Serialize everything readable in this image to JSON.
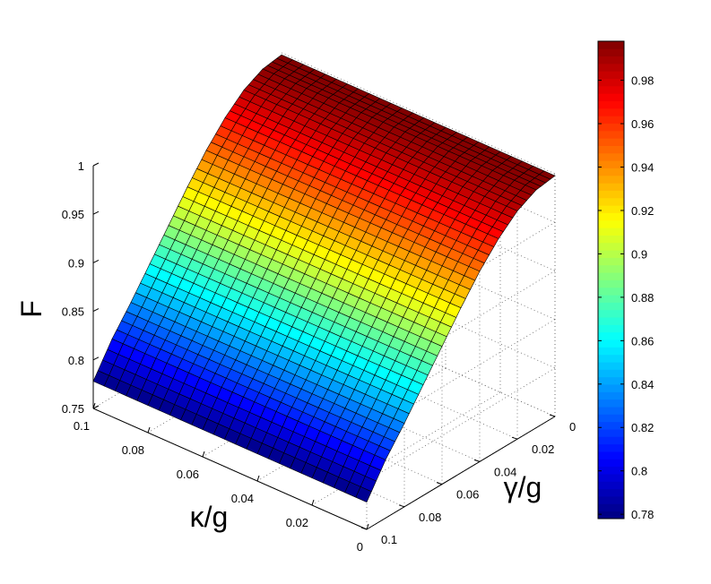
{
  "chart_data": {
    "type": "surface",
    "zlabel": "F",
    "xlabel": "κ/g",
    "ylabel": "γ/g",
    "x": {
      "range": [
        0,
        0.1
      ],
      "ticks": [
        0.1,
        0.08,
        0.06,
        0.04,
        0.02,
        0
      ],
      "tick_labels": [
        "0.1",
        "0.08",
        "0.06",
        "0.04",
        "0.02",
        "0"
      ]
    },
    "y": {
      "range": [
        0,
        0.1
      ],
      "ticks": [
        0,
        0.02,
        0.04,
        0.06,
        0.08,
        0.1
      ],
      "tick_labels": [
        "0",
        "0.02",
        "0.04",
        "0.06",
        "0.08",
        "0.1"
      ]
    },
    "z": {
      "range": [
        0.75,
        1
      ],
      "ticks": [
        0.75,
        0.8,
        0.85,
        0.9,
        0.95,
        1
      ],
      "tick_labels": [
        "0.75",
        "0.8",
        "0.85",
        "0.9",
        "0.95",
        "1"
      ]
    },
    "surface_profile": {
      "varies_along": "γ/g",
      "gamma": [
        0,
        0.01,
        0.02,
        0.03,
        0.04,
        0.05,
        0.06,
        0.07,
        0.08,
        0.09,
        0.1
      ],
      "F": [
        0.998,
        0.995,
        0.985,
        0.968,
        0.946,
        0.92,
        0.892,
        0.864,
        0.836,
        0.81,
        0.778
      ]
    },
    "colorbar": {
      "range": [
        0.778,
        0.998
      ],
      "ticks": [
        0.78,
        0.8,
        0.82,
        0.84,
        0.86,
        0.88,
        0.9,
        0.92,
        0.94,
        0.96,
        0.98
      ],
      "tick_labels": [
        "0.78",
        "0.8",
        "0.82",
        "0.84",
        "0.86",
        "0.88",
        "0.9",
        "0.92",
        "0.94",
        "0.96",
        "0.98"
      ],
      "colormap": "jet"
    },
    "grid": true
  }
}
